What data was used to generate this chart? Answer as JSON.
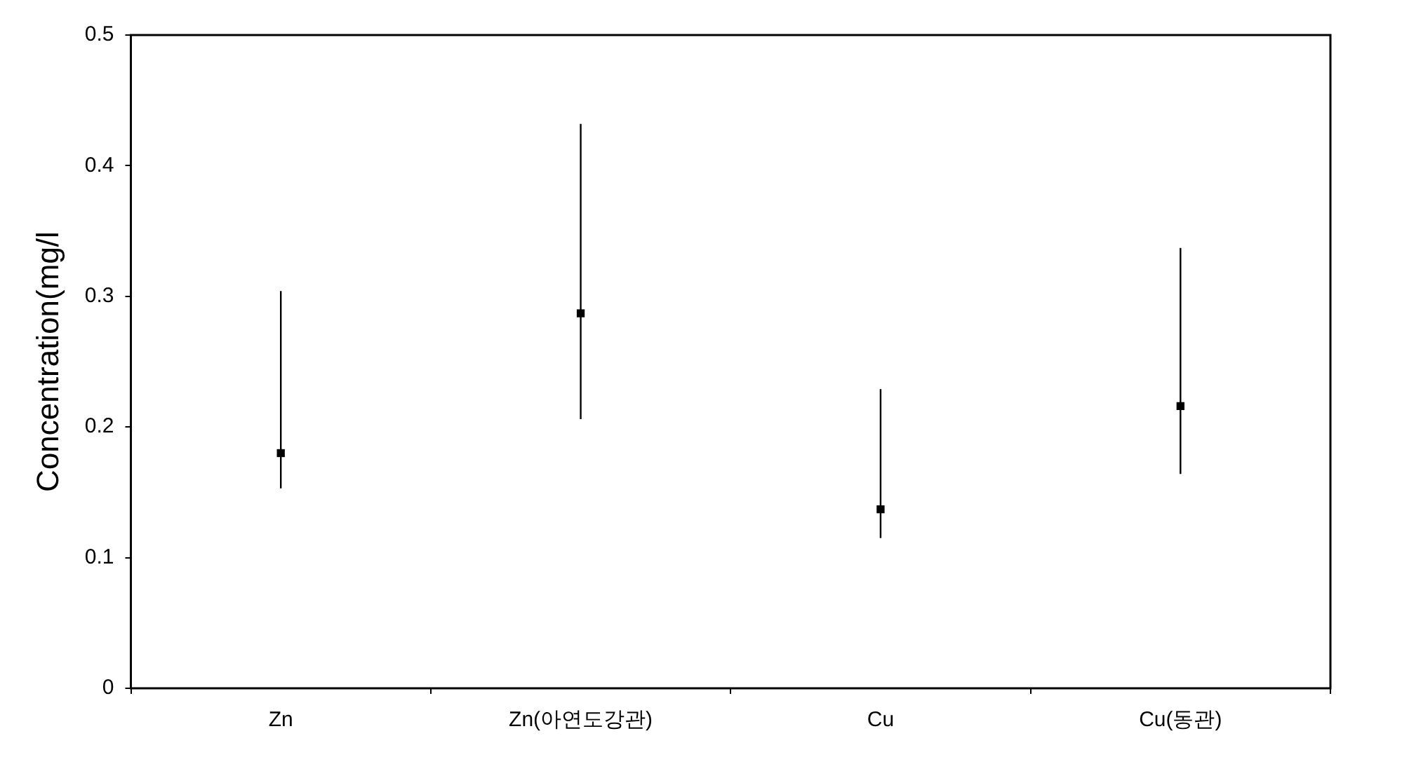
{
  "chart_data": {
    "type": "scatter",
    "ylabel": "Concentration(mg/l",
    "categories": [
      "Zn",
      "Zn(아연도강관)",
      "Cu",
      "Cu(동관)"
    ],
    "series": [
      {
        "color": "#000000",
        "values": [
          0.18,
          0.287,
          0.137,
          0.216
        ],
        "errors": [
          [
            0.153,
            0.304
          ],
          [
            0.206,
            0.432
          ],
          [
            0.115,
            0.229
          ],
          [
            0.164,
            0.337
          ]
        ]
      }
    ],
    "ylim": [
      0,
      0.5
    ],
    "yticks": [
      0,
      0.1,
      0.2,
      0.3,
      0.4,
      0.5
    ],
    "grid": false,
    "legend": false,
    "marker": "square"
  }
}
